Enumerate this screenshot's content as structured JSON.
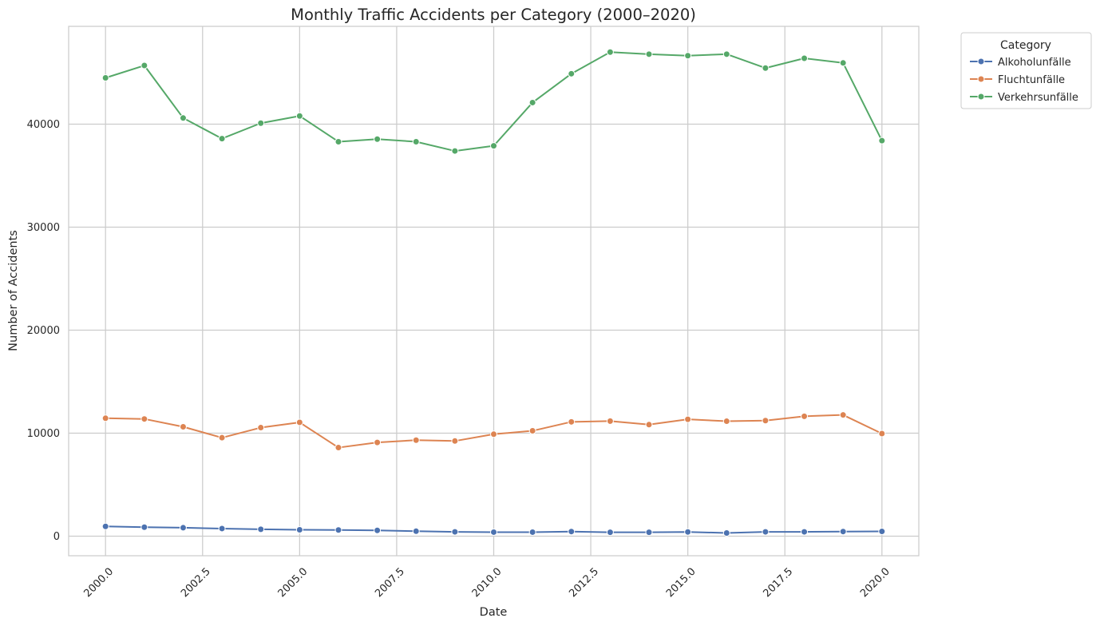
{
  "chart_data": {
    "type": "line",
    "title": "Monthly Traffic Accidents per Category (2000–2020)",
    "xlabel": "Date",
    "ylabel": "Number of Accidents",
    "xlim": [
      1999.05,
      2020.95
    ],
    "ylim": [
      -1900,
      49500
    ],
    "x_ticks": [
      2000.0,
      2002.5,
      2005.0,
      2007.5,
      2010.0,
      2012.5,
      2015.0,
      2017.5,
      2020.0
    ],
    "x_tick_labels": [
      "2000.0",
      "2002.5",
      "2005.0",
      "2007.5",
      "2010.0",
      "2012.5",
      "2015.0",
      "2017.5",
      "2020.0"
    ],
    "y_ticks": [
      0,
      10000,
      20000,
      30000,
      40000
    ],
    "y_tick_labels": [
      "0",
      "10000",
      "20000",
      "30000",
      "40000"
    ],
    "grid": true,
    "legend": {
      "title": "Category",
      "placement": "outside-top-right"
    },
    "x": [
      2000,
      2001,
      2002,
      2003,
      2004,
      2005,
      2006,
      2007,
      2008,
      2009,
      2010,
      2011,
      2012,
      2013,
      2014,
      2015,
      2016,
      2017,
      2018,
      2019,
      2020
    ],
    "series": [
      {
        "name": "Alkoholunfälle",
        "color": "#4c72b0",
        "values": [
          950,
          870,
          820,
          740,
          670,
          620,
          600,
          560,
          480,
          420,
          390,
          390,
          450,
          380,
          380,
          410,
          310,
          420,
          420,
          450,
          460
        ]
      },
      {
        "name": "Fluchtunfälle",
        "color": "#dd8452",
        "values": [
          11450,
          11380,
          10620,
          9560,
          10540,
          11050,
          8600,
          9100,
          9320,
          9240,
          9900,
          10230,
          11100,
          11170,
          10830,
          11350,
          11160,
          11220,
          11640,
          11770,
          9960
        ]
      },
      {
        "name": "Verkehrsunfälle",
        "color": "#55a868",
        "values": [
          44500,
          45700,
          40600,
          38600,
          40100,
          40800,
          38300,
          38550,
          38300,
          37400,
          37900,
          42100,
          44900,
          47000,
          46800,
          46650,
          46800,
          45450,
          46400,
          45950,
          38400
        ]
      }
    ]
  }
}
